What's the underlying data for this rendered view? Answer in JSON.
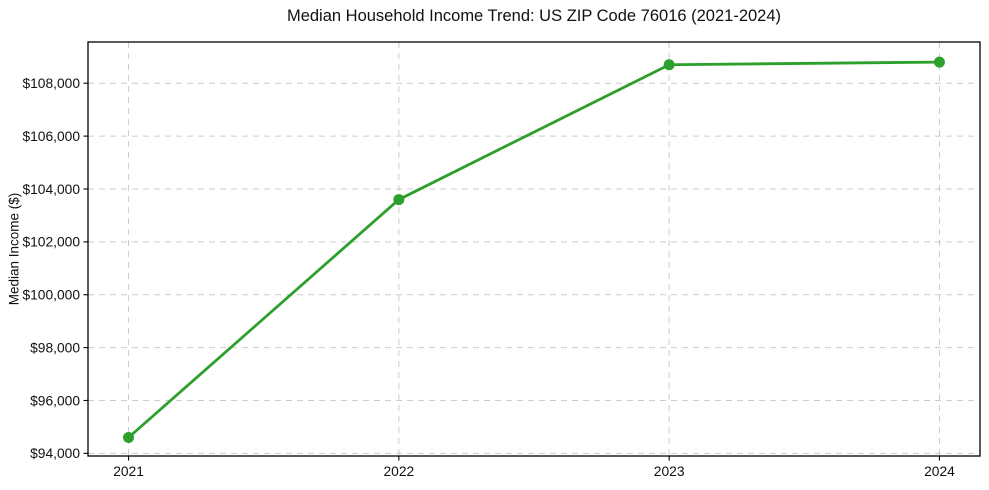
{
  "chart_data": {
    "type": "line",
    "title": "Median Household Income Trend: US ZIP Code 76016 (2021-2024)",
    "xlabel": "",
    "ylabel": "Median Income ($)",
    "x": [
      2021,
      2022,
      2023,
      2024
    ],
    "values": [
      94600,
      103600,
      108700,
      108800
    ],
    "point_labels": [
      "$94,600",
      "$103,600",
      "$108,700",
      "$108,800"
    ],
    "xticks": {
      "values": [
        2021,
        2022,
        2023,
        2024
      ],
      "labels": [
        "2021",
        "2022",
        "2023",
        "2024"
      ]
    },
    "yticks": {
      "values": [
        94000,
        96000,
        98000,
        100000,
        102000,
        104000,
        106000,
        108000
      ],
      "labels": [
        "$94,000",
        "$96,000",
        "$98,000",
        "$100,000",
        "$102,000",
        "$104,000",
        "$106,000",
        "$108,000"
      ]
    },
    "xlim": [
      2020.85,
      2024.15
    ],
    "ylim": [
      93900,
      109560
    ],
    "grid": true,
    "grid_style": "dashed",
    "legend_position": "none",
    "line_color": "#2ca02c",
    "grid_color": "#cccccc",
    "frame_color": "#000000",
    "marker": "circle",
    "background_color": "#ffffff"
  }
}
